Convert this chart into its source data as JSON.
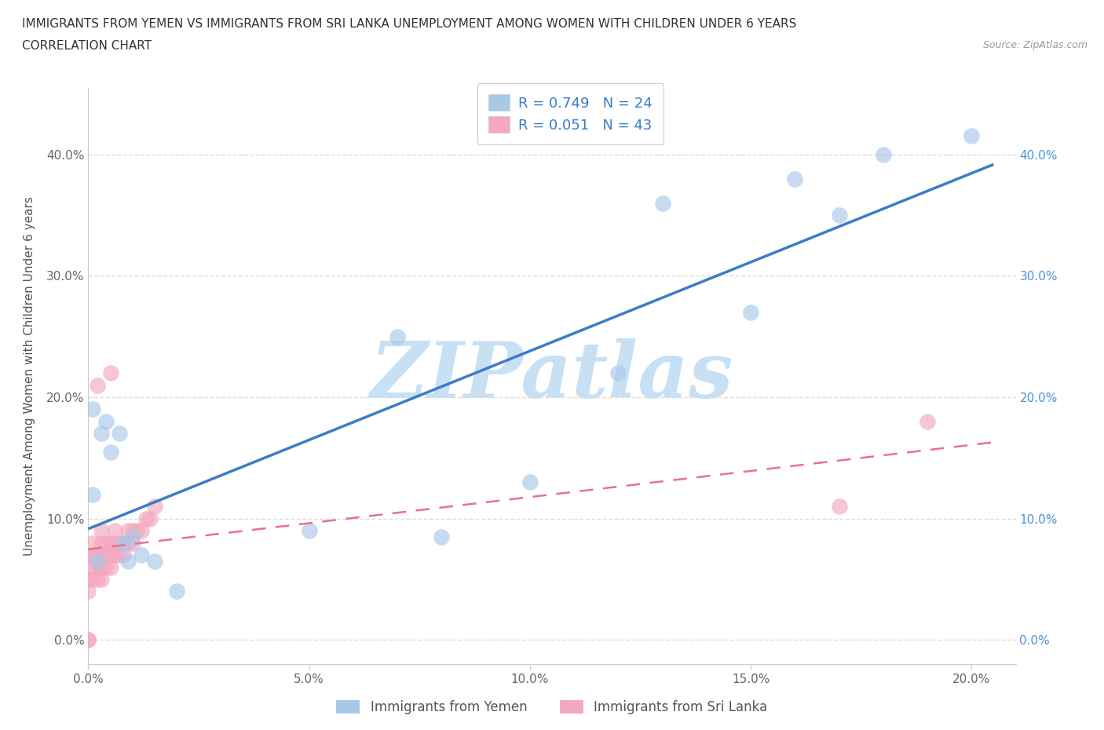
{
  "title_line1": "IMMIGRANTS FROM YEMEN VS IMMIGRANTS FROM SRI LANKA UNEMPLOYMENT AMONG WOMEN WITH CHILDREN UNDER 6 YEARS",
  "title_line2": "CORRELATION CHART",
  "source": "Source: ZipAtlas.com",
  "ylabel": "Unemployment Among Women with Children Under 6 years",
  "watermark": "ZIPatlas",
  "legend_r1": "R = 0.749",
  "legend_n1": "N = 24",
  "legend_r2": "R = 0.051",
  "legend_n2": "N = 43",
  "label_yemen": "Immigrants from Yemen",
  "label_srilanka": "Immigrants from Sri Lanka",
  "xlim": [
    0.0,
    0.21
  ],
  "ylim": [
    -0.02,
    0.455
  ],
  "xticks": [
    0.0,
    0.05,
    0.1,
    0.15,
    0.2
  ],
  "yticks": [
    0.0,
    0.1,
    0.2,
    0.3,
    0.4
  ],
  "color_yemen": "#A8C8E8",
  "color_srilanka": "#F4A8C0",
  "color_yemen_line": "#3A7CC7",
  "color_srilanka_line": "#E87090",
  "color_grid": "#DDDDDD",
  "color_watermark": "#C8E0F4",
  "yemen_x": [
    0.001,
    0.001,
    0.002,
    0.003,
    0.004,
    0.005,
    0.007,
    0.008,
    0.009,
    0.01,
    0.012,
    0.015,
    0.02,
    0.05,
    0.07,
    0.08,
    0.1,
    0.12,
    0.13,
    0.15,
    0.16,
    0.17,
    0.18,
    0.2
  ],
  "yemen_y": [
    0.12,
    0.19,
    0.065,
    0.17,
    0.18,
    0.155,
    0.17,
    0.08,
    0.065,
    0.085,
    0.07,
    0.065,
    0.04,
    0.09,
    0.25,
    0.085,
    0.13,
    0.22,
    0.36,
    0.27,
    0.38,
    0.35,
    0.4,
    0.415
  ],
  "srilanka_x": [
    0.0,
    0.0,
    0.0,
    0.0,
    0.0,
    0.001,
    0.001,
    0.001,
    0.001,
    0.002,
    0.002,
    0.002,
    0.002,
    0.003,
    0.003,
    0.003,
    0.003,
    0.003,
    0.004,
    0.004,
    0.004,
    0.005,
    0.005,
    0.005,
    0.005,
    0.006,
    0.006,
    0.006,
    0.007,
    0.007,
    0.008,
    0.008,
    0.009,
    0.009,
    0.01,
    0.01,
    0.011,
    0.012,
    0.013,
    0.014,
    0.015,
    0.17,
    0.19
  ],
  "srilanka_y": [
    0.0,
    0.0,
    0.04,
    0.05,
    0.07,
    0.05,
    0.06,
    0.07,
    0.08,
    0.05,
    0.06,
    0.07,
    0.21,
    0.05,
    0.06,
    0.07,
    0.08,
    0.09,
    0.06,
    0.07,
    0.08,
    0.06,
    0.07,
    0.08,
    0.22,
    0.07,
    0.08,
    0.09,
    0.07,
    0.08,
    0.07,
    0.08,
    0.08,
    0.09,
    0.08,
    0.09,
    0.09,
    0.09,
    0.1,
    0.1,
    0.11,
    0.11,
    0.18
  ]
}
